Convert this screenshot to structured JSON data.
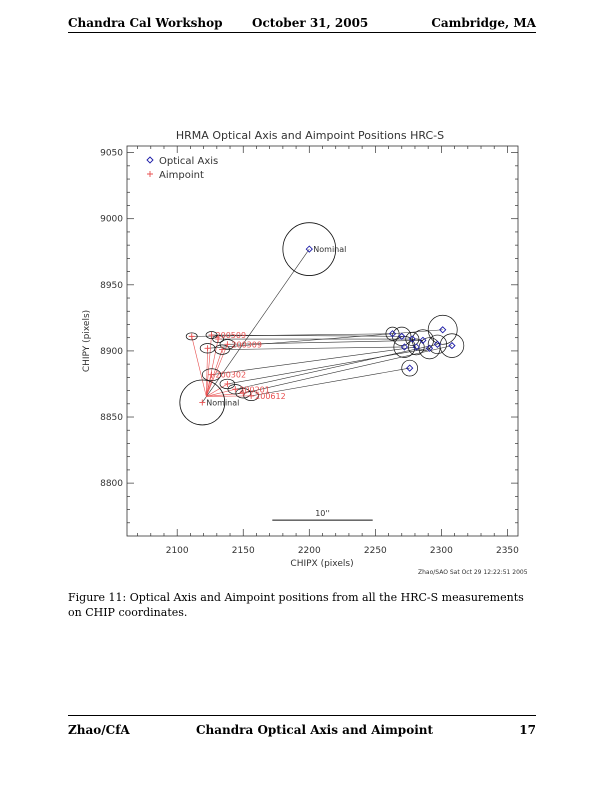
{
  "header": {
    "left": "Chandra Cal Workshop",
    "center": "October 31, 2005",
    "right": "Cambridge, MA"
  },
  "footer": {
    "left": "Zhao/CfA",
    "center": "Chandra Optical Axis and Aimpoint",
    "page": "17"
  },
  "caption": "Figure 11: Optical Axis and Aimpoint positions from all the HRC-S measurements on CHIP coordinates.",
  "chart_data": {
    "type": "scatter",
    "title": "HRMA Optical Axis and Aimpoint Positions  HRC-S",
    "xlabel": "CHIPX (pixels)",
    "ylabel": "CHIPY (pixels)",
    "xlim": [
      2062,
      2358
    ],
    "ylim": [
      8760,
      9055
    ],
    "xticks": [
      2100,
      2150,
      2200,
      2250,
      2300,
      2350
    ],
    "yticks": [
      8800,
      8850,
      8900,
      8950,
      9000,
      9050
    ],
    "credit": "Zhao/SAO Sat Oct 29 12:22:51 2005",
    "scale_bar_label": "10''",
    "scale_bar_x": [
      2172,
      2248
    ],
    "scale_bar_y": 8772,
    "legend": [
      {
        "label": "Optical Axis",
        "marker": "diamond",
        "color": "#1a1aa6"
      },
      {
        "label": "Aimpoint",
        "marker": "plus",
        "color": "#e85050"
      }
    ],
    "colors": {
      "optical_axis": "#1a1aa6",
      "aimpoint": "#e85050",
      "line": "#333333"
    },
    "nominal": {
      "label": "Nominal",
      "optical_axis": {
        "x": 2200,
        "y": 8977,
        "r": 20
      },
      "aimpoint": {
        "x": 2119,
        "y": 8861,
        "r": 17
      }
    },
    "aimpoints": [
      {
        "x": 2111,
        "y": 8911,
        "r": 3
      },
      {
        "x": 2126,
        "y": 8912,
        "r": 3
      },
      {
        "x": 2131,
        "y": 8909,
        "r": 3
      },
      {
        "x": 2138,
        "y": 8905,
        "r": 4
      },
      {
        "x": 2123,
        "y": 8902,
        "r": 4
      },
      {
        "x": 2134,
        "y": 8901,
        "r": 4
      },
      {
        "x": 2126,
        "y": 8882,
        "r": 5
      },
      {
        "x": 2138,
        "y": 8875,
        "r": 4
      },
      {
        "x": 2144,
        "y": 8871,
        "r": 4
      },
      {
        "x": 2150,
        "y": 8868,
        "r": 4
      },
      {
        "x": 2156,
        "y": 8866,
        "r": 4
      }
    ],
    "optical_axes": [
      {
        "x": 2263,
        "y": 8913,
        "r": 5
      },
      {
        "x": 2270,
        "y": 8911,
        "r": 7
      },
      {
        "x": 2278,
        "y": 8909,
        "r": 5
      },
      {
        "x": 2286,
        "y": 8908,
        "r": 8
      },
      {
        "x": 2301,
        "y": 8916,
        "r": 11
      },
      {
        "x": 2272,
        "y": 8903,
        "r": 8
      },
      {
        "x": 2281,
        "y": 8903,
        "r": 6
      },
      {
        "x": 2291,
        "y": 8902,
        "r": 8
      },
      {
        "x": 2297,
        "y": 8905,
        "r": 7
      },
      {
        "x": 2308,
        "y": 8904,
        "r": 9
      },
      {
        "x": 2276,
        "y": 8887,
        "r": 6
      }
    ],
    "labels": [
      {
        "text": "200509",
        "ax": 2126,
        "ay": 8912
      },
      {
        "text": "200309",
        "ax": 2138,
        "ay": 8905
      },
      {
        "text": "200302",
        "ax": 2126,
        "ay": 8882
      },
      {
        "text": "200201",
        "ax": 2144,
        "ay": 8871
      },
      {
        "text": "200612",
        "ax": 2156,
        "ay": 8866
      }
    ]
  }
}
